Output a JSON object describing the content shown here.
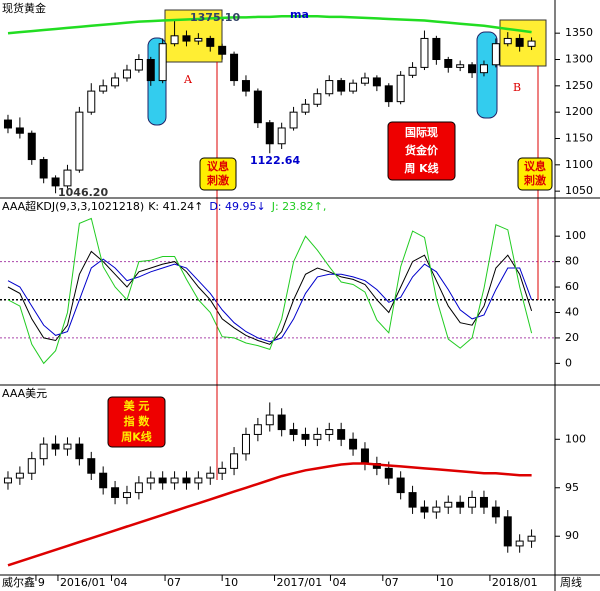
{
  "chart_data": [
    {
      "type": "candlestick",
      "title": "现货黄金",
      "xlim": [
        -0.67,
        45.97
      ],
      "ylim": [
        1037,
        1413
      ],
      "yticks": [
        1050,
        1100,
        1150,
        1200,
        1250,
        1300,
        1350
      ],
      "open": [
        1185,
        1170,
        1160,
        1110,
        1075,
        1060,
        1090,
        1200,
        1240,
        1250,
        1265,
        1280,
        1300,
        1260,
        1330,
        1345,
        1335,
        1340,
        1325,
        1310,
        1260,
        1240,
        1180,
        1140,
        1170,
        1200,
        1215,
        1235,
        1260,
        1240,
        1255,
        1265,
        1250,
        1220,
        1270,
        1285,
        1340,
        1300,
        1285,
        1290,
        1275,
        1290,
        1330,
        1340,
        1325
      ],
      "high": [
        1195,
        1190,
        1165,
        1115,
        1080,
        1100,
        1210,
        1255,
        1262,
        1275,
        1290,
        1310,
        1305,
        1340,
        1375,
        1355,
        1350,
        1345,
        1330,
        1315,
        1270,
        1245,
        1185,
        1180,
        1210,
        1225,
        1245,
        1270,
        1265,
        1262,
        1275,
        1270,
        1255,
        1278,
        1295,
        1355,
        1345,
        1305,
        1298,
        1295,
        1298,
        1340,
        1352,
        1348,
        1342
      ],
      "low": [
        1160,
        1150,
        1100,
        1065,
        1046,
        1055,
        1085,
        1195,
        1235,
        1245,
        1258,
        1275,
        1250,
        1255,
        1325,
        1325,
        1328,
        1315,
        1300,
        1250,
        1230,
        1170,
        1122,
        1130,
        1165,
        1195,
        1210,
        1230,
        1232,
        1235,
        1250,
        1240,
        1210,
        1215,
        1265,
        1280,
        1290,
        1275,
        1278,
        1265,
        1268,
        1285,
        1325,
        1315,
        1318
      ],
      "close": [
        1170,
        1160,
        1110,
        1075,
        1060,
        1090,
        1200,
        1240,
        1250,
        1265,
        1280,
        1300,
        1260,
        1330,
        1345,
        1335,
        1340,
        1325,
        1310,
        1260,
        1240,
        1180,
        1140,
        1170,
        1200,
        1215,
        1235,
        1260,
        1240,
        1255,
        1265,
        1250,
        1220,
        1270,
        1285,
        1340,
        1300,
        1285,
        1290,
        1275,
        1290,
        1330,
        1340,
        1325,
        1335
      ],
      "up_color": "#ffffff",
      "down_color": "#000000",
      "ma": {
        "name": "ma",
        "color": "#22dd22",
        "label_color": "#0000cc",
        "values": [
          1350,
          1352,
          1354,
          1356,
          1358,
          1360,
          1362,
          1364,
          1366,
          1368,
          1370,
          1372,
          1373,
          1374,
          1375,
          1376,
          1377,
          1378,
          1379,
          1380,
          1380,
          1381,
          1381,
          1382,
          1382,
          1382,
          1382,
          1381,
          1381,
          1380,
          1379,
          1378,
          1377,
          1376,
          1375,
          1374,
          1372,
          1370,
          1368,
          1366,
          1364,
          1361,
          1358,
          1355,
          1352
        ]
      },
      "annotations": [
        {
          "text": "A",
          "color": "#dd0000"
        },
        {
          "text": "B",
          "color": "#dd0000"
        },
        {
          "text": "1375.10",
          "value": 1375.1,
          "color": "#334466"
        },
        {
          "text": "1122.64",
          "value": 1122.64,
          "color": "#0000cc"
        },
        {
          "text": "1046.20",
          "value": 1046.2,
          "color": "#333333"
        },
        {
          "lines": [
            "议息",
            "刺激"
          ],
          "fill": "#ffee00",
          "color": "#dd0000"
        },
        {
          "lines": [
            "议息",
            "刺激"
          ],
          "fill": "#ffee00",
          "color": "#dd0000"
        },
        {
          "lines": [
            "国际现",
            "货金价",
            "周 K线"
          ],
          "fill": "#ee0000",
          "color": "#ffffff"
        }
      ]
    },
    {
      "type": "line",
      "title": "AAA超KDJ(9,3,3,1021218)",
      "xlim": [
        -0.67,
        45.97
      ],
      "ylim": [
        -17,
        130
      ],
      "yticks": [
        0,
        20,
        40,
        60,
        80,
        100
      ],
      "ref_lines": [
        {
          "value": 80,
          "color": "#aa44aa"
        },
        {
          "value": 50,
          "color": "#000000"
        },
        {
          "value": 20,
          "color": "#aa44aa"
        }
      ],
      "series": [
        {
          "name": "K",
          "label": "K: 41.24↑",
          "color": "#000000",
          "values": [
            60,
            55,
            35,
            20,
            18,
            30,
            70,
            88,
            80,
            70,
            60,
            72,
            75,
            78,
            80,
            72,
            60,
            50,
            35,
            28,
            22,
            18,
            15,
            25,
            50,
            70,
            75,
            72,
            68,
            66,
            62,
            50,
            40,
            60,
            80,
            85,
            65,
            45,
            32,
            30,
            45,
            75,
            85,
            70,
            41.24
          ]
        },
        {
          "name": "D",
          "label": "D: 49.95↓",
          "color": "#0000cc",
          "values": [
            65,
            60,
            45,
            30,
            22,
            25,
            50,
            75,
            82,
            75,
            65,
            68,
            72,
            75,
            78,
            75,
            65,
            55,
            42,
            32,
            25,
            20,
            17,
            20,
            35,
            55,
            68,
            70,
            70,
            68,
            65,
            58,
            48,
            52,
            68,
            78,
            72,
            58,
            42,
            35,
            38,
            58,
            75,
            75,
            49.95
          ]
        },
        {
          "name": "J",
          "label": "J: 23.82↑,",
          "color": "#22cc22",
          "values": [
            50,
            45,
            15,
            0,
            10,
            40,
            110,
            114,
            76,
            60,
            50,
            80,
            81,
            84,
            84,
            66,
            50,
            40,
            21,
            20,
            16,
            14,
            11,
            35,
            80,
            100,
            89,
            76,
            64,
            62,
            56,
            34,
            24,
            76,
            104,
            99,
            51,
            19,
            12,
            20,
            59,
            109,
            105,
            60,
            23.82
          ]
        }
      ]
    },
    {
      "type": "candlestick",
      "title": "AAA美元",
      "xlim": [
        -0.67,
        45.97
      ],
      "ylim": [
        86,
        105.6
      ],
      "yticks": [
        90,
        95,
        100
      ],
      "xticks": [
        {
          "value": 2.35,
          "label": "9"
        },
        {
          "value": 4.2,
          "label": "2016/01"
        },
        {
          "value": 8.7,
          "label": "04"
        },
        {
          "value": 13.2,
          "label": "07"
        },
        {
          "value": 18.0,
          "label": "10"
        },
        {
          "value": 22.4,
          "label": "2017/01"
        },
        {
          "value": 27.1,
          "label": "04"
        },
        {
          "value": 31.5,
          "label": "07"
        },
        {
          "value": 36.1,
          "label": "10"
        },
        {
          "value": 40.5,
          "label": "2018/01"
        }
      ],
      "open": [
        95.5,
        96,
        96.5,
        98,
        99.5,
        99,
        99.5,
        98,
        96.5,
        95,
        94,
        94.5,
        95.5,
        96,
        95.5,
        96,
        95.5,
        96,
        96.5,
        97,
        98.5,
        100.5,
        101.5,
        102.5,
        101,
        100.5,
        100,
        100.5,
        101,
        100,
        99,
        97.5,
        97,
        96,
        94.5,
        93,
        92.5,
        93,
        93.5,
        93,
        94,
        93,
        92,
        89,
        89.5
      ],
      "high": [
        96.7,
        97.2,
        98.7,
        100.2,
        100.4,
        100.2,
        100.2,
        98.7,
        97.2,
        95.7,
        95.2,
        96.2,
        96.7,
        96.7,
        96.7,
        96.7,
        96.7,
        97.2,
        97.7,
        99.2,
        101.2,
        102.2,
        103.8,
        103.2,
        101.7,
        101.2,
        101.2,
        101.7,
        101.7,
        100.7,
        99.7,
        98.2,
        97.7,
        96.7,
        95.2,
        93.7,
        93.7,
        94.2,
        94.2,
        94.7,
        94.7,
        93.7,
        92.7,
        90.2,
        90.7
      ],
      "low": [
        94.8,
        95.3,
        95.8,
        97.3,
        98.3,
        98.3,
        97.3,
        95.8,
        94.3,
        93.3,
        93.3,
        93.8,
        94.8,
        94.8,
        94.8,
        94.8,
        94.8,
        95.3,
        95.8,
        96.3,
        97.8,
        99.8,
        100.8,
        100.3,
        99.8,
        99.3,
        99.3,
        99.8,
        99.3,
        98.3,
        96.8,
        96.3,
        95.3,
        93.8,
        92.3,
        91.8,
        91.8,
        92.3,
        92.3,
        92.3,
        92.3,
        91.3,
        88.3,
        88.3,
        88.8
      ],
      "close": [
        96,
        96.5,
        98,
        99.5,
        99,
        99.5,
        98,
        96.5,
        95,
        94,
        94.5,
        95.5,
        96,
        95.5,
        96,
        95.5,
        96,
        96.5,
        97,
        98.5,
        100.5,
        101.5,
        102.5,
        101,
        100.5,
        100,
        100.5,
        101,
        100,
        99,
        97.5,
        97,
        96,
        94.5,
        93,
        92.5,
        93,
        93.5,
        93,
        94,
        93,
        92,
        89,
        89.5,
        90
      ],
      "up_color": "#ffffff",
      "down_color": "#000000",
      "ma": {
        "color": "#dd0000",
        "values": [
          87.0,
          87.4,
          87.8,
          88.2,
          88.6,
          89.0,
          89.4,
          89.8,
          90.2,
          90.6,
          91.0,
          91.4,
          91.8,
          92.2,
          92.6,
          93.0,
          93.4,
          93.8,
          94.2,
          94.6,
          95.0,
          95.4,
          95.8,
          96.2,
          96.5,
          96.8,
          97.0,
          97.2,
          97.4,
          97.5,
          97.5,
          97.4,
          97.3,
          97.2,
          97.1,
          97.0,
          96.9,
          96.8,
          96.7,
          96.6,
          96.5,
          96.5,
          96.4,
          96.3,
          96.3
        ]
      },
      "annotations": [
        {
          "lines": [
            "美 元",
            "指 数",
            "周K线"
          ],
          "fill": "#ee0000",
          "color": "#ffee00"
        }
      ]
    }
  ],
  "footer": {
    "left": "威尔鑫",
    "right": "周线"
  }
}
